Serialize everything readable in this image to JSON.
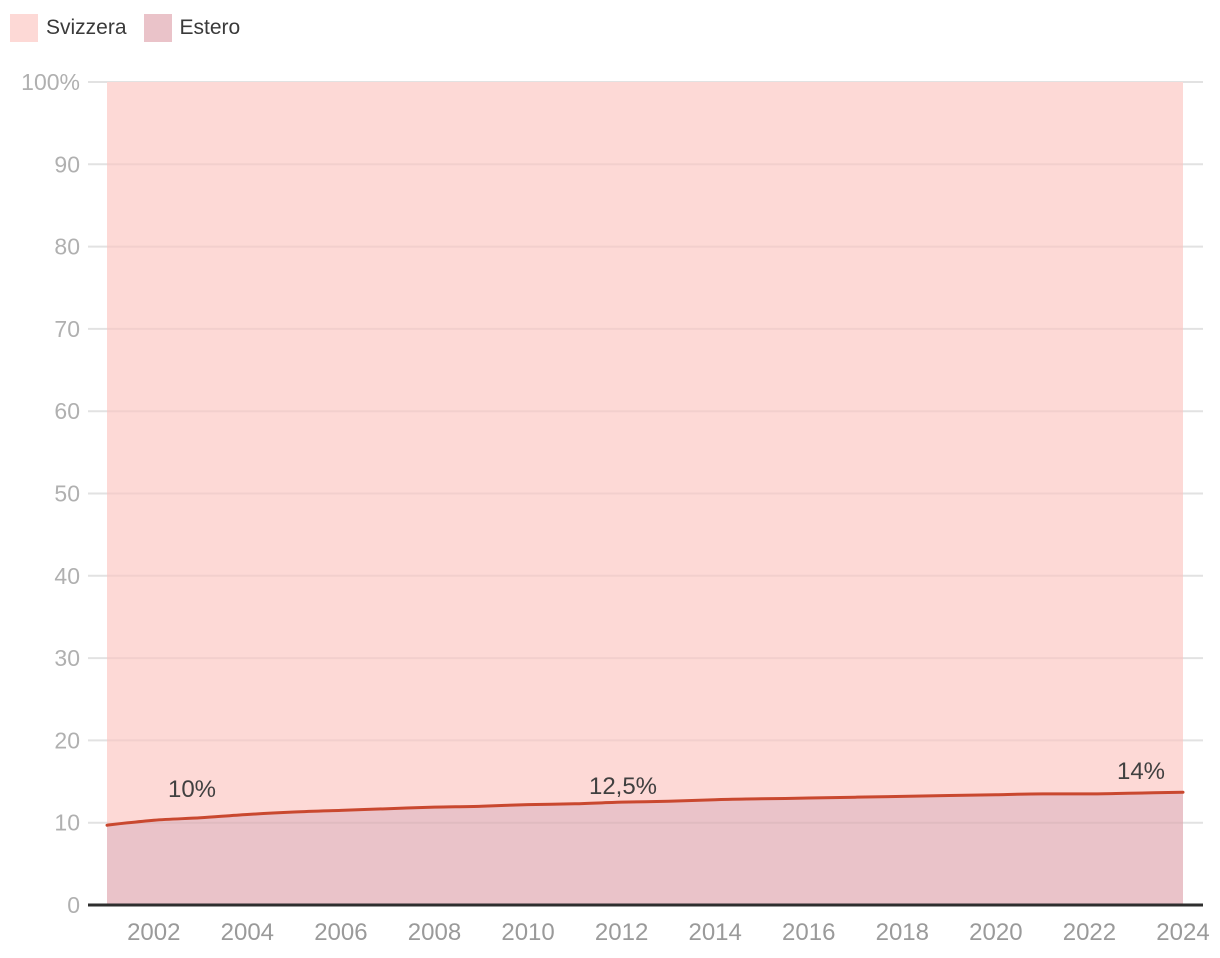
{
  "legend": {
    "items": [
      {
        "label": "Svizzera",
        "color": "#fdd9d6"
      },
      {
        "label": "Estero",
        "color": "#eac3c9"
      }
    ]
  },
  "chart_data": {
    "type": "area",
    "variant": "percent-stacked",
    "title": "",
    "xlabel": "",
    "ylabel": "",
    "x": [
      2001,
      2002,
      2003,
      2004,
      2005,
      2006,
      2007,
      2008,
      2009,
      2010,
      2011,
      2012,
      2013,
      2014,
      2015,
      2016,
      2017,
      2018,
      2019,
      2020,
      2021,
      2022,
      2023,
      2024
    ],
    "series": [
      {
        "name": "Svizzera",
        "color": "#fdd9d6",
        "values": [
          90.3,
          89.7,
          89.4,
          89.0,
          88.7,
          88.5,
          88.3,
          88.1,
          88.0,
          87.8,
          87.7,
          87.5,
          87.4,
          87.2,
          87.1,
          87.0,
          86.9,
          86.8,
          86.7,
          86.6,
          86.5,
          86.5,
          86.4,
          86.3
        ]
      },
      {
        "name": "Estero",
        "color": "#eac3c9",
        "values": [
          9.7,
          10.3,
          10.6,
          11.0,
          11.3,
          11.5,
          11.7,
          11.9,
          12.0,
          12.2,
          12.3,
          12.5,
          12.6,
          12.8,
          12.9,
          13.0,
          13.1,
          13.2,
          13.3,
          13.4,
          13.5,
          13.5,
          13.6,
          13.7
        ]
      }
    ],
    "boundary_line_color": "#c9482f",
    "ylim": [
      0,
      100
    ],
    "grid": true,
    "legend_position": "top-left",
    "y_ticks": [
      {
        "value": 0,
        "label": "0"
      },
      {
        "value": 10,
        "label": "10"
      },
      {
        "value": 20,
        "label": "20"
      },
      {
        "value": 30,
        "label": "30"
      },
      {
        "value": 40,
        "label": "40"
      },
      {
        "value": 50,
        "label": "50"
      },
      {
        "value": 60,
        "label": "60"
      },
      {
        "value": 70,
        "label": "70"
      },
      {
        "value": 80,
        "label": "80"
      },
      {
        "value": 90,
        "label": "90"
      },
      {
        "value": 100,
        "label": "100%"
      }
    ],
    "x_ticks": [
      {
        "value": 2002,
        "label": "2002"
      },
      {
        "value": 2004,
        "label": "2004"
      },
      {
        "value": 2006,
        "label": "2006"
      },
      {
        "value": 2008,
        "label": "2008"
      },
      {
        "value": 2010,
        "label": "2010"
      },
      {
        "value": 2012,
        "label": "2012"
      },
      {
        "value": 2014,
        "label": "2014"
      },
      {
        "value": 2016,
        "label": "2016"
      },
      {
        "value": 2018,
        "label": "2018"
      },
      {
        "value": 2020,
        "label": "2020"
      },
      {
        "value": 2022,
        "label": "2022"
      },
      {
        "value": 2024,
        "label": "2024"
      }
    ],
    "annotations": [
      {
        "text": "10%",
        "x": 192,
        "y": 789
      },
      {
        "text": "12,5%",
        "x": 623,
        "y": 786
      },
      {
        "text": "14%",
        "x": 1141,
        "y": 771
      }
    ]
  },
  "colors": {
    "grid": "#e2e2e2",
    "grid_overlay": "rgba(40,40,40,0.05)",
    "axis": "#2e2e2e",
    "y_tick_label": "#b0b0b0",
    "x_tick_label": "#9a9a9a",
    "annotation_text": "#404040"
  }
}
